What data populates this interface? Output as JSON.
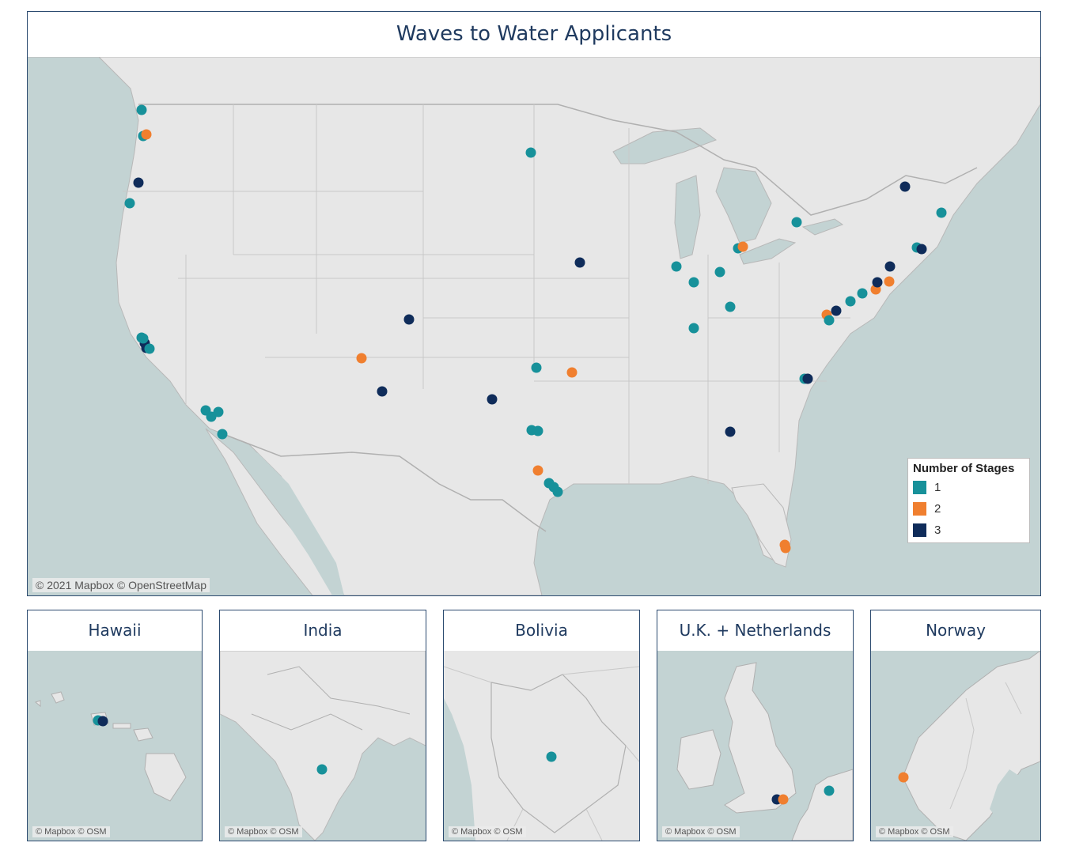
{
  "main": {
    "title": "Waves to Water Applicants",
    "credit": "© 2021 Mapbox © OpenStreetMap"
  },
  "legend": {
    "title": "Number of Stages",
    "items": [
      {
        "label": "1",
        "color": "#17919a"
      },
      {
        "label": "2",
        "color": "#f07f2f"
      },
      {
        "label": "3",
        "color": "#0f2c5a"
      }
    ]
  },
  "colors": {
    "water": "#c3d3d3",
    "land": "#e7e7e7",
    "border": "#b8b8b8",
    "stage1": "#17919a",
    "stage2": "#f07f2f",
    "stage3": "#0f2c5a",
    "panel_border": "#2b4a6f"
  },
  "insets": [
    {
      "key": "hawaii",
      "title": "Hawaii",
      "credit": "© Mapbox © OSM"
    },
    {
      "key": "india",
      "title": "India",
      "credit": "© Mapbox © OSM"
    },
    {
      "key": "bolivia",
      "title": "Bolivia",
      "credit": "© Mapbox © OSM"
    },
    {
      "key": "uk",
      "title": "U.K. + Netherlands",
      "credit": "© Mapbox © OSM"
    },
    {
      "key": "norway",
      "title": "Norway",
      "credit": "© Mapbox © OSM"
    }
  ]
}
